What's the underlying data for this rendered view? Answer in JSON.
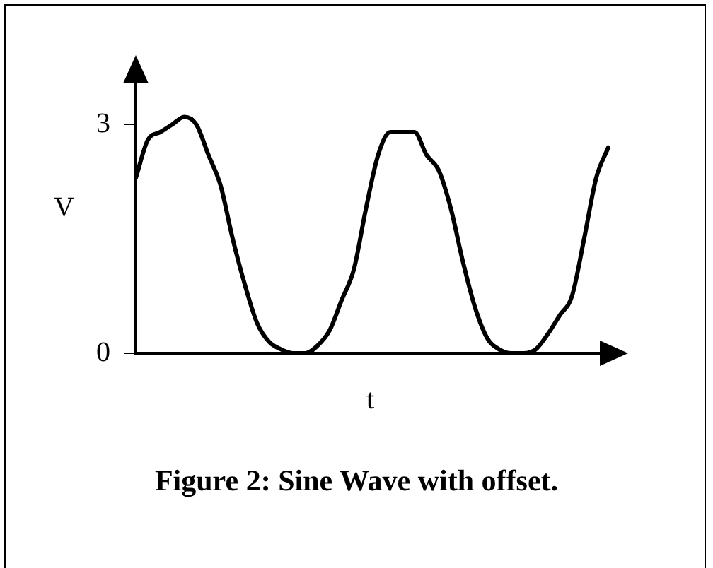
{
  "chart_data": {
    "type": "line",
    "title": "Figure 2: Sine Wave with offset.",
    "xlabel": "t",
    "ylabel": "V",
    "categories": [
      null,
      null,
      null,
      null,
      null,
      null,
      null,
      null,
      null,
      null,
      null,
      null,
      null,
      null,
      null,
      null,
      null,
      null,
      null,
      null,
      null,
      null,
      null,
      null,
      null,
      null,
      null,
      null,
      null,
      null,
      null,
      null,
      null,
      null,
      null,
      null,
      null,
      null,
      null,
      null
    ],
    "series": [
      {
        "color": "#000000",
        "values": [
          2.3,
          2.8,
          2.9,
          3.0,
          3.1,
          3.0,
          2.6,
          2.2,
          1.5,
          0.9,
          0.4,
          0.15,
          0.05,
          0.0,
          0.0,
          0.1,
          0.3,
          0.7,
          1.1,
          1.9,
          2.6,
          2.9,
          2.9,
          2.9,
          2.6,
          2.4,
          1.9,
          1.2,
          0.6,
          0.2,
          0.05,
          0.0,
          0.0,
          0.05,
          0.25,
          0.5,
          0.75,
          1.5,
          2.3,
          2.7
        ]
      }
    ],
    "ylim": [
      0,
      3.8
    ],
    "yticks": [
      0,
      3
    ],
    "tick_labels": "y",
    "grid": false,
    "legend": false,
    "marker": "none",
    "line_style": "solid"
  }
}
